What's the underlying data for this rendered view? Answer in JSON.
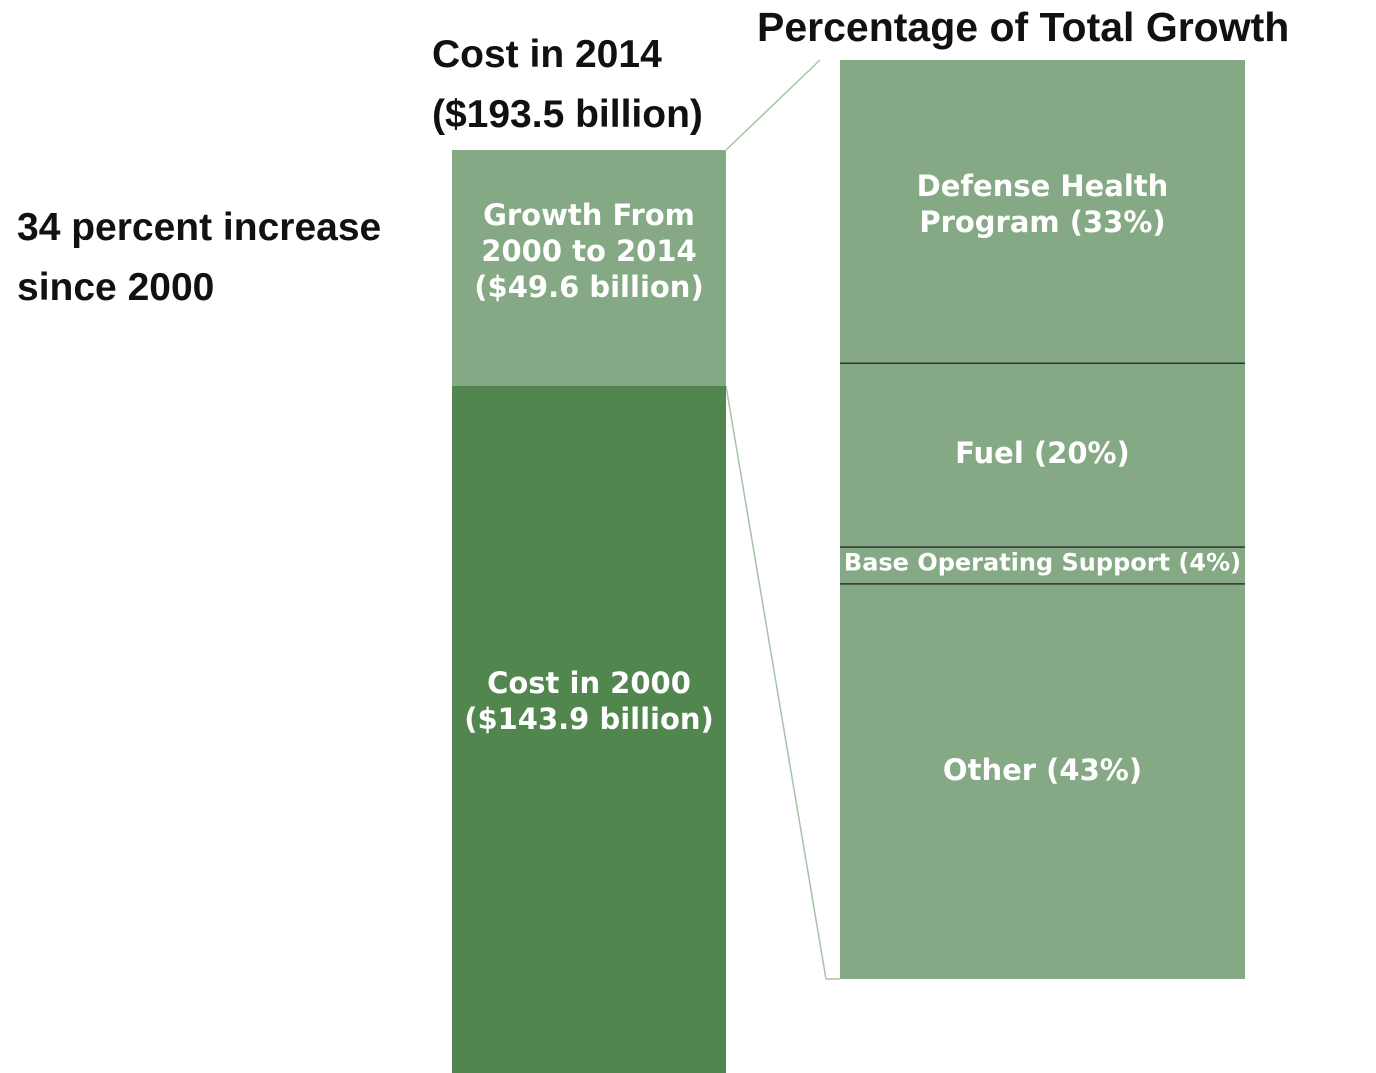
{
  "chart_data": {
    "type": "bar",
    "stacked": true,
    "title": "Percentage of Total Growth",
    "left_bar": {
      "header": [
        "Cost in 2014",
        "($193.5 billion)"
      ],
      "total": 193.5,
      "unit": "billion dollars",
      "segments": [
        {
          "name": "Cost in 2000",
          "value": 143.9,
          "lines": [
            "Cost in 2000",
            "($143.9 billion)"
          ],
          "color": "#52864f"
        },
        {
          "name": "Growth From 2000 to 2014",
          "value": 49.6,
          "lines": [
            "Growth From",
            "2000 to 2014",
            "($49.6 billion)"
          ],
          "color": "#84a984"
        }
      ]
    },
    "right_bar": {
      "unit": "percent",
      "segments": [
        {
          "name": "Defense Health Program",
          "value": 33,
          "lines": [
            "Defense Health",
            "Program (33%)"
          ]
        },
        {
          "name": "Fuel",
          "value": 20,
          "lines": [
            "Fuel (20%)"
          ]
        },
        {
          "name": "Base Operating Support",
          "value": 4,
          "lines": [
            "Base Operating Support (4%)"
          ]
        },
        {
          "name": "Other",
          "value": 43,
          "lines": [
            "Other (43%)"
          ]
        }
      ],
      "color": "#84a984",
      "divider_color": "#333333"
    },
    "annotation": [
      "34 percent increase",
      "since 2000"
    ],
    "connector_color": "#a8c4a6"
  }
}
